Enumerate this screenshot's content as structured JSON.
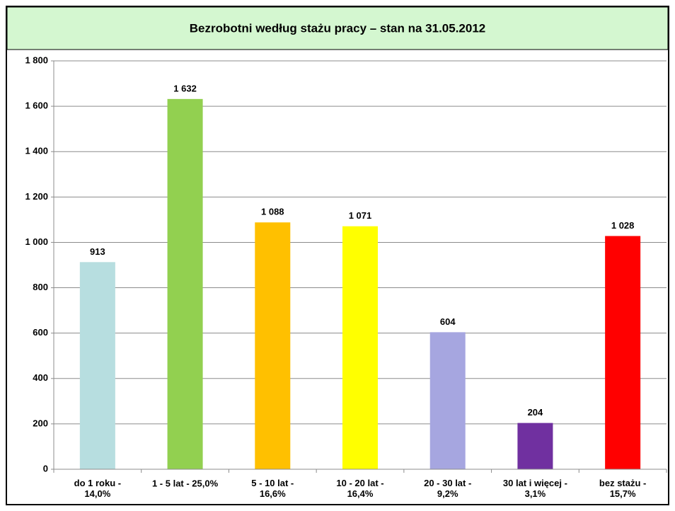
{
  "chart_data": {
    "type": "bar",
    "title": "Bezrobotni według stażu pracy – stan na 31.05.2012",
    "categories": [
      "do 1 roku -\n14,0%",
      "1 - 5 lat - 25,0%",
      "5 - 10 lat -\n16,6%",
      "10 - 20 lat -\n16,4%",
      "20 - 30 lat -\n9,2%",
      "30 lat i więcej -\n3,1%",
      "bez stażu  -\n15,7%"
    ],
    "values": [
      913,
      1632,
      1088,
      1071,
      604,
      204,
      1028
    ],
    "value_labels": [
      "913",
      "1 632",
      "1 088",
      "1 071",
      "604",
      "204",
      "1 028"
    ],
    "colors": [
      "#b7dee0",
      "#92d050",
      "#ffc000",
      "#ffff00",
      "#a6a6e0",
      "#7030a0",
      "#ff0000"
    ],
    "ylim": [
      0,
      1800
    ],
    "yticks": [
      0,
      200,
      400,
      600,
      800,
      {
        "value": 1000,
        "label": "1 000"
      },
      {
        "value": 1200,
        "label": "1 200"
      },
      {
        "value": 1400,
        "label": "1 400"
      },
      {
        "value": 1600,
        "label": "1 600"
      },
      {
        "value": 1800,
        "label": "1 800"
      }
    ],
    "grid": true
  }
}
